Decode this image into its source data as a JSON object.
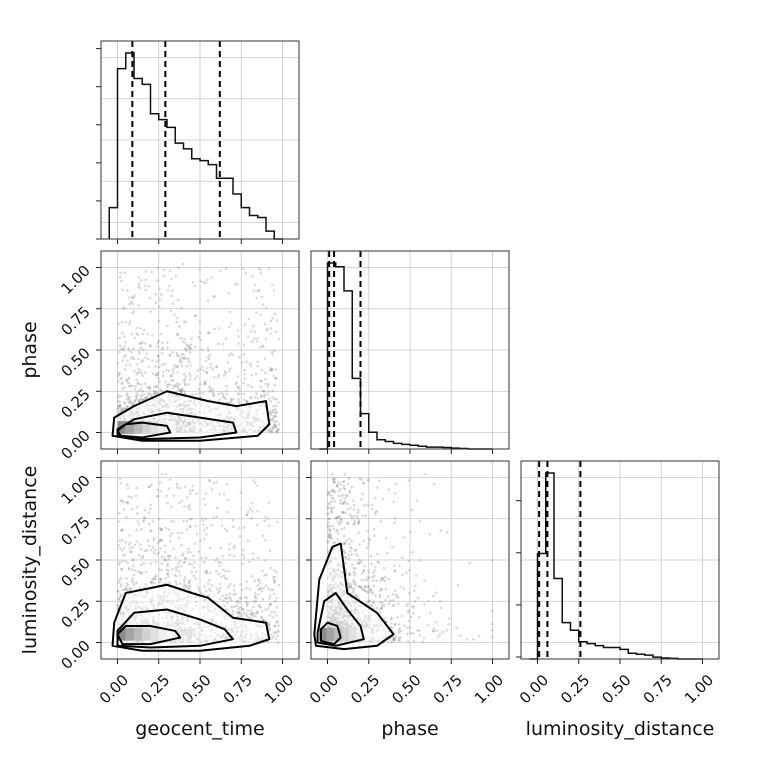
{
  "chart_data": {
    "type": "corner",
    "parameters": [
      "geocent_time",
      "phase",
      "luminosity_distance"
    ],
    "tick_labels": [
      "0.00",
      "0.25",
      "0.50",
      "0.75",
      "1.00"
    ],
    "tick_values": [
      0,
      0.25,
      0.5,
      0.75,
      1.0
    ],
    "axis_range": [
      -0.1,
      1.1
    ],
    "grid": true,
    "histograms": [
      {
        "parameter": "geocent_time",
        "bin_edges": [
          -0.05,
          0.0,
          0.05,
          0.1,
          0.15,
          0.2,
          0.25,
          0.3,
          0.35,
          0.4,
          0.45,
          0.5,
          0.55,
          0.6,
          0.65,
          0.7,
          0.75,
          0.8,
          0.85,
          0.9,
          0.95,
          1.0
        ],
        "heights": [
          0.16,
          0.87,
          0.95,
          0.82,
          0.79,
          0.64,
          0.61,
          0.57,
          0.49,
          0.46,
          0.41,
          0.4,
          0.38,
          0.31,
          0.31,
          0.23,
          0.16,
          0.12,
          0.11,
          0.04,
          0.0
        ],
        "quantile_lines": [
          0.09,
          0.29,
          0.62
        ]
      },
      {
        "parameter": "phase",
        "bin_edges": [
          -0.05,
          0.0,
          0.05,
          0.1,
          0.15,
          0.2,
          0.25,
          0.3,
          0.35,
          0.4,
          0.45,
          0.5,
          0.55,
          0.6,
          0.65,
          0.7,
          0.75,
          0.8,
          0.85,
          0.9,
          0.95,
          1.0
        ],
        "heights": [
          0.0,
          1.0,
          0.98,
          0.85,
          0.38,
          0.19,
          0.09,
          0.05,
          0.04,
          0.03,
          0.025,
          0.02,
          0.015,
          0.01,
          0.01,
          0.008,
          0.005,
          0.003,
          0.0,
          0.0,
          0.0
        ],
        "quantile_lines": [
          0.01,
          0.04,
          0.2
        ]
      },
      {
        "parameter": "luminosity_distance",
        "bin_edges": [
          -0.05,
          0.0,
          0.05,
          0.1,
          0.15,
          0.2,
          0.25,
          0.3,
          0.35,
          0.4,
          0.45,
          0.5,
          0.55,
          0.6,
          0.65,
          0.7,
          0.75,
          0.8,
          0.85,
          0.9,
          0.95,
          1.0
        ],
        "heights": [
          0.0,
          0.55,
          0.97,
          0.42,
          0.19,
          0.15,
          0.09,
          0.08,
          0.07,
          0.06,
          0.06,
          0.05,
          0.03,
          0.025,
          0.02,
          0.01,
          0.005,
          0.003,
          0.0,
          0.0,
          0.0
        ],
        "quantile_lines": [
          0.01,
          0.06,
          0.26
        ]
      }
    ],
    "scatter_panels": [
      {
        "x": "geocent_time",
        "y": "phase",
        "density_core": [
          0.05,
          0.03
        ],
        "contours": [
          [
            [
              -0.02,
              0.09
            ],
            [
              0.1,
              0.16
            ],
            [
              0.3,
              0.25
            ],
            [
              0.55,
              0.19
            ],
            [
              0.72,
              0.16
            ],
            [
              0.9,
              0.19
            ],
            [
              0.92,
              0.05
            ],
            [
              0.85,
              -0.02
            ],
            [
              0.5,
              -0.05
            ],
            [
              0.15,
              -0.05
            ],
            [
              -0.03,
              -0.02
            ]
          ],
          [
            [
              0.0,
              0.02
            ],
            [
              0.1,
              0.08
            ],
            [
              0.3,
              0.12
            ],
            [
              0.5,
              0.09
            ],
            [
              0.7,
              0.06
            ],
            [
              0.72,
              0.0
            ],
            [
              0.5,
              -0.03
            ],
            [
              0.15,
              -0.04
            ],
            [
              0.0,
              -0.02
            ]
          ],
          [
            [
              0.0,
              0.01
            ],
            [
              0.05,
              0.05
            ],
            [
              0.15,
              0.06
            ],
            [
              0.3,
              0.04
            ],
            [
              0.32,
              0.0
            ],
            [
              0.15,
              -0.03
            ],
            [
              0.02,
              -0.02
            ]
          ]
        ]
      },
      {
        "x": "geocent_time",
        "y": "luminosity_distance",
        "density_core": [
          0.05,
          0.05
        ],
        "contours": [
          [
            [
              -0.02,
              0.12
            ],
            [
              0.05,
              0.3
            ],
            [
              0.3,
              0.35
            ],
            [
              0.45,
              0.3
            ],
            [
              0.55,
              0.27
            ],
            [
              0.7,
              0.15
            ],
            [
              0.9,
              0.12
            ],
            [
              0.92,
              0.02
            ],
            [
              0.8,
              -0.02
            ],
            [
              0.5,
              -0.05
            ],
            [
              0.15,
              -0.05
            ],
            [
              -0.03,
              -0.02
            ]
          ],
          [
            [
              0.0,
              0.07
            ],
            [
              0.1,
              0.18
            ],
            [
              0.3,
              0.2
            ],
            [
              0.5,
              0.14
            ],
            [
              0.65,
              0.08
            ],
            [
              0.7,
              0.02
            ],
            [
              0.5,
              -0.02
            ],
            [
              0.2,
              -0.03
            ],
            [
              0.0,
              -0.02
            ]
          ],
          [
            [
              0.0,
              0.05
            ],
            [
              0.05,
              0.1
            ],
            [
              0.2,
              0.1
            ],
            [
              0.35,
              0.07
            ],
            [
              0.38,
              0.03
            ],
            [
              0.2,
              -0.01
            ],
            [
              0.03,
              -0.01
            ]
          ]
        ]
      },
      {
        "x": "phase",
        "y": "luminosity_distance",
        "density_core": [
          0.0,
          0.05
        ],
        "contours": [
          [
            [
              -0.08,
              0.05
            ],
            [
              -0.05,
              0.38
            ],
            [
              0.03,
              0.58
            ],
            [
              0.08,
              0.6
            ],
            [
              0.12,
              0.3
            ],
            [
              0.3,
              0.18
            ],
            [
              0.4,
              0.05
            ],
            [
              0.3,
              -0.02
            ],
            [
              0.1,
              -0.04
            ],
            [
              -0.07,
              -0.02
            ]
          ],
          [
            [
              -0.06,
              0.06
            ],
            [
              -0.02,
              0.25
            ],
            [
              0.05,
              0.3
            ],
            [
              0.12,
              0.2
            ],
            [
              0.2,
              0.1
            ],
            [
              0.22,
              0.02
            ],
            [
              0.05,
              -0.02
            ],
            [
              -0.06,
              0.0
            ]
          ],
          [
            [
              -0.04,
              0.08
            ],
            [
              0.0,
              0.12
            ],
            [
              0.06,
              0.1
            ],
            [
              0.08,
              0.03
            ],
            [
              0.04,
              -0.01
            ],
            [
              -0.04,
              0.01
            ]
          ]
        ]
      }
    ],
    "x_labels": [
      "geocent_time",
      "phase",
      "luminosity_distance"
    ],
    "y_labels": [
      "",
      "phase",
      "luminosity_distance"
    ]
  }
}
